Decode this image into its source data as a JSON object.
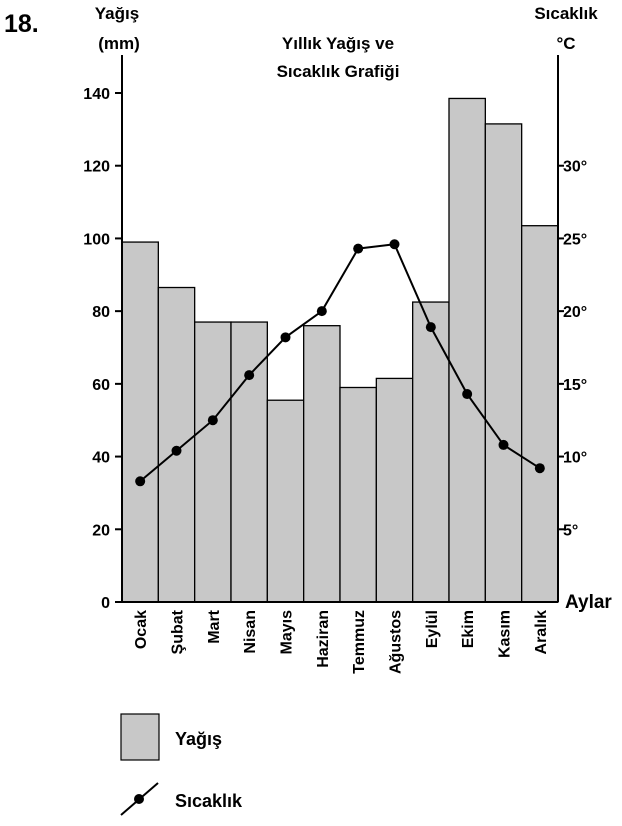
{
  "question_number": "18.",
  "chart_data": {
    "type": "bar",
    "title_lines": [
      "Yıllık Yağış ve",
      "Sıcaklık Grafiği"
    ],
    "ylabel_left_lines": [
      "Yağış",
      "(mm)"
    ],
    "ylabel_right_lines": [
      "Sıcaklık",
      "°C"
    ],
    "xlabel": "Aylar",
    "categories": [
      "Ocak",
      "Şubat",
      "Mart",
      "Nisan",
      "Mayıs",
      "Haziran",
      "Temmuz",
      "Ağustos",
      "Eylül",
      "Ekim",
      "Kasım",
      "Aralık"
    ],
    "series": [
      {
        "name": "Yağış",
        "kind": "bar",
        "axis": "left",
        "values": [
          99,
          86.5,
          77,
          77,
          55.5,
          76,
          59,
          61.5,
          82.5,
          138.5,
          131.5,
          103.5
        ]
      },
      {
        "name": "Sıcaklık",
        "kind": "line",
        "axis": "right",
        "values": [
          8.3,
          10.4,
          12.5,
          15.6,
          18.2,
          20.0,
          24.3,
          24.6,
          18.9,
          14.3,
          10.8,
          9.2
        ]
      }
    ],
    "ylim_left": [
      0,
      150
    ],
    "yticks_left": [
      0,
      20,
      40,
      60,
      80,
      100,
      120,
      140
    ],
    "ylim_right": [
      0,
      37.5
    ],
    "yticks_right": [
      5,
      10,
      15,
      20,
      25,
      30
    ],
    "ytick_right_suffix": "°",
    "bar_color": "#c8c8c8",
    "line_color": "#000000",
    "legend": {
      "placement": "bottom-left",
      "items": [
        "Yağış",
        "Sıcaklık"
      ]
    }
  }
}
